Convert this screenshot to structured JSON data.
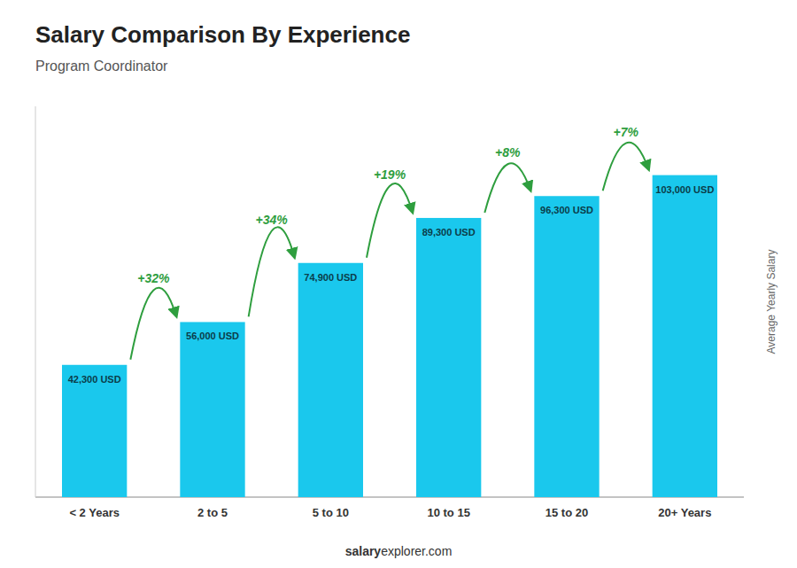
{
  "chart_data": {
    "type": "bar",
    "title": "Salary Comparison By Experience",
    "subtitle": "Program Coordinator",
    "categories": [
      "< 2 Years",
      "2 to 5",
      "5 to 10",
      "10 to 15",
      "15 to 20",
      "20+ Years"
    ],
    "values": [
      42300,
      56000,
      74900,
      89300,
      96300,
      103000
    ],
    "value_labels": [
      "42,300 USD",
      "56,000 USD",
      "74,900 USD",
      "89,300 USD",
      "96,300 USD",
      "103,000 USD"
    ],
    "data_labels": true,
    "annotations": [
      "+32%",
      "+34%",
      "+19%",
      "+8%",
      "+7%"
    ],
    "color": "#1AC8ED",
    "y_label": "Average Yearly Salary",
    "ylim": [
      0,
      125000
    ],
    "tick_labels": "x",
    "footer": [
      "salary",
      "explorer.com"
    ]
  }
}
